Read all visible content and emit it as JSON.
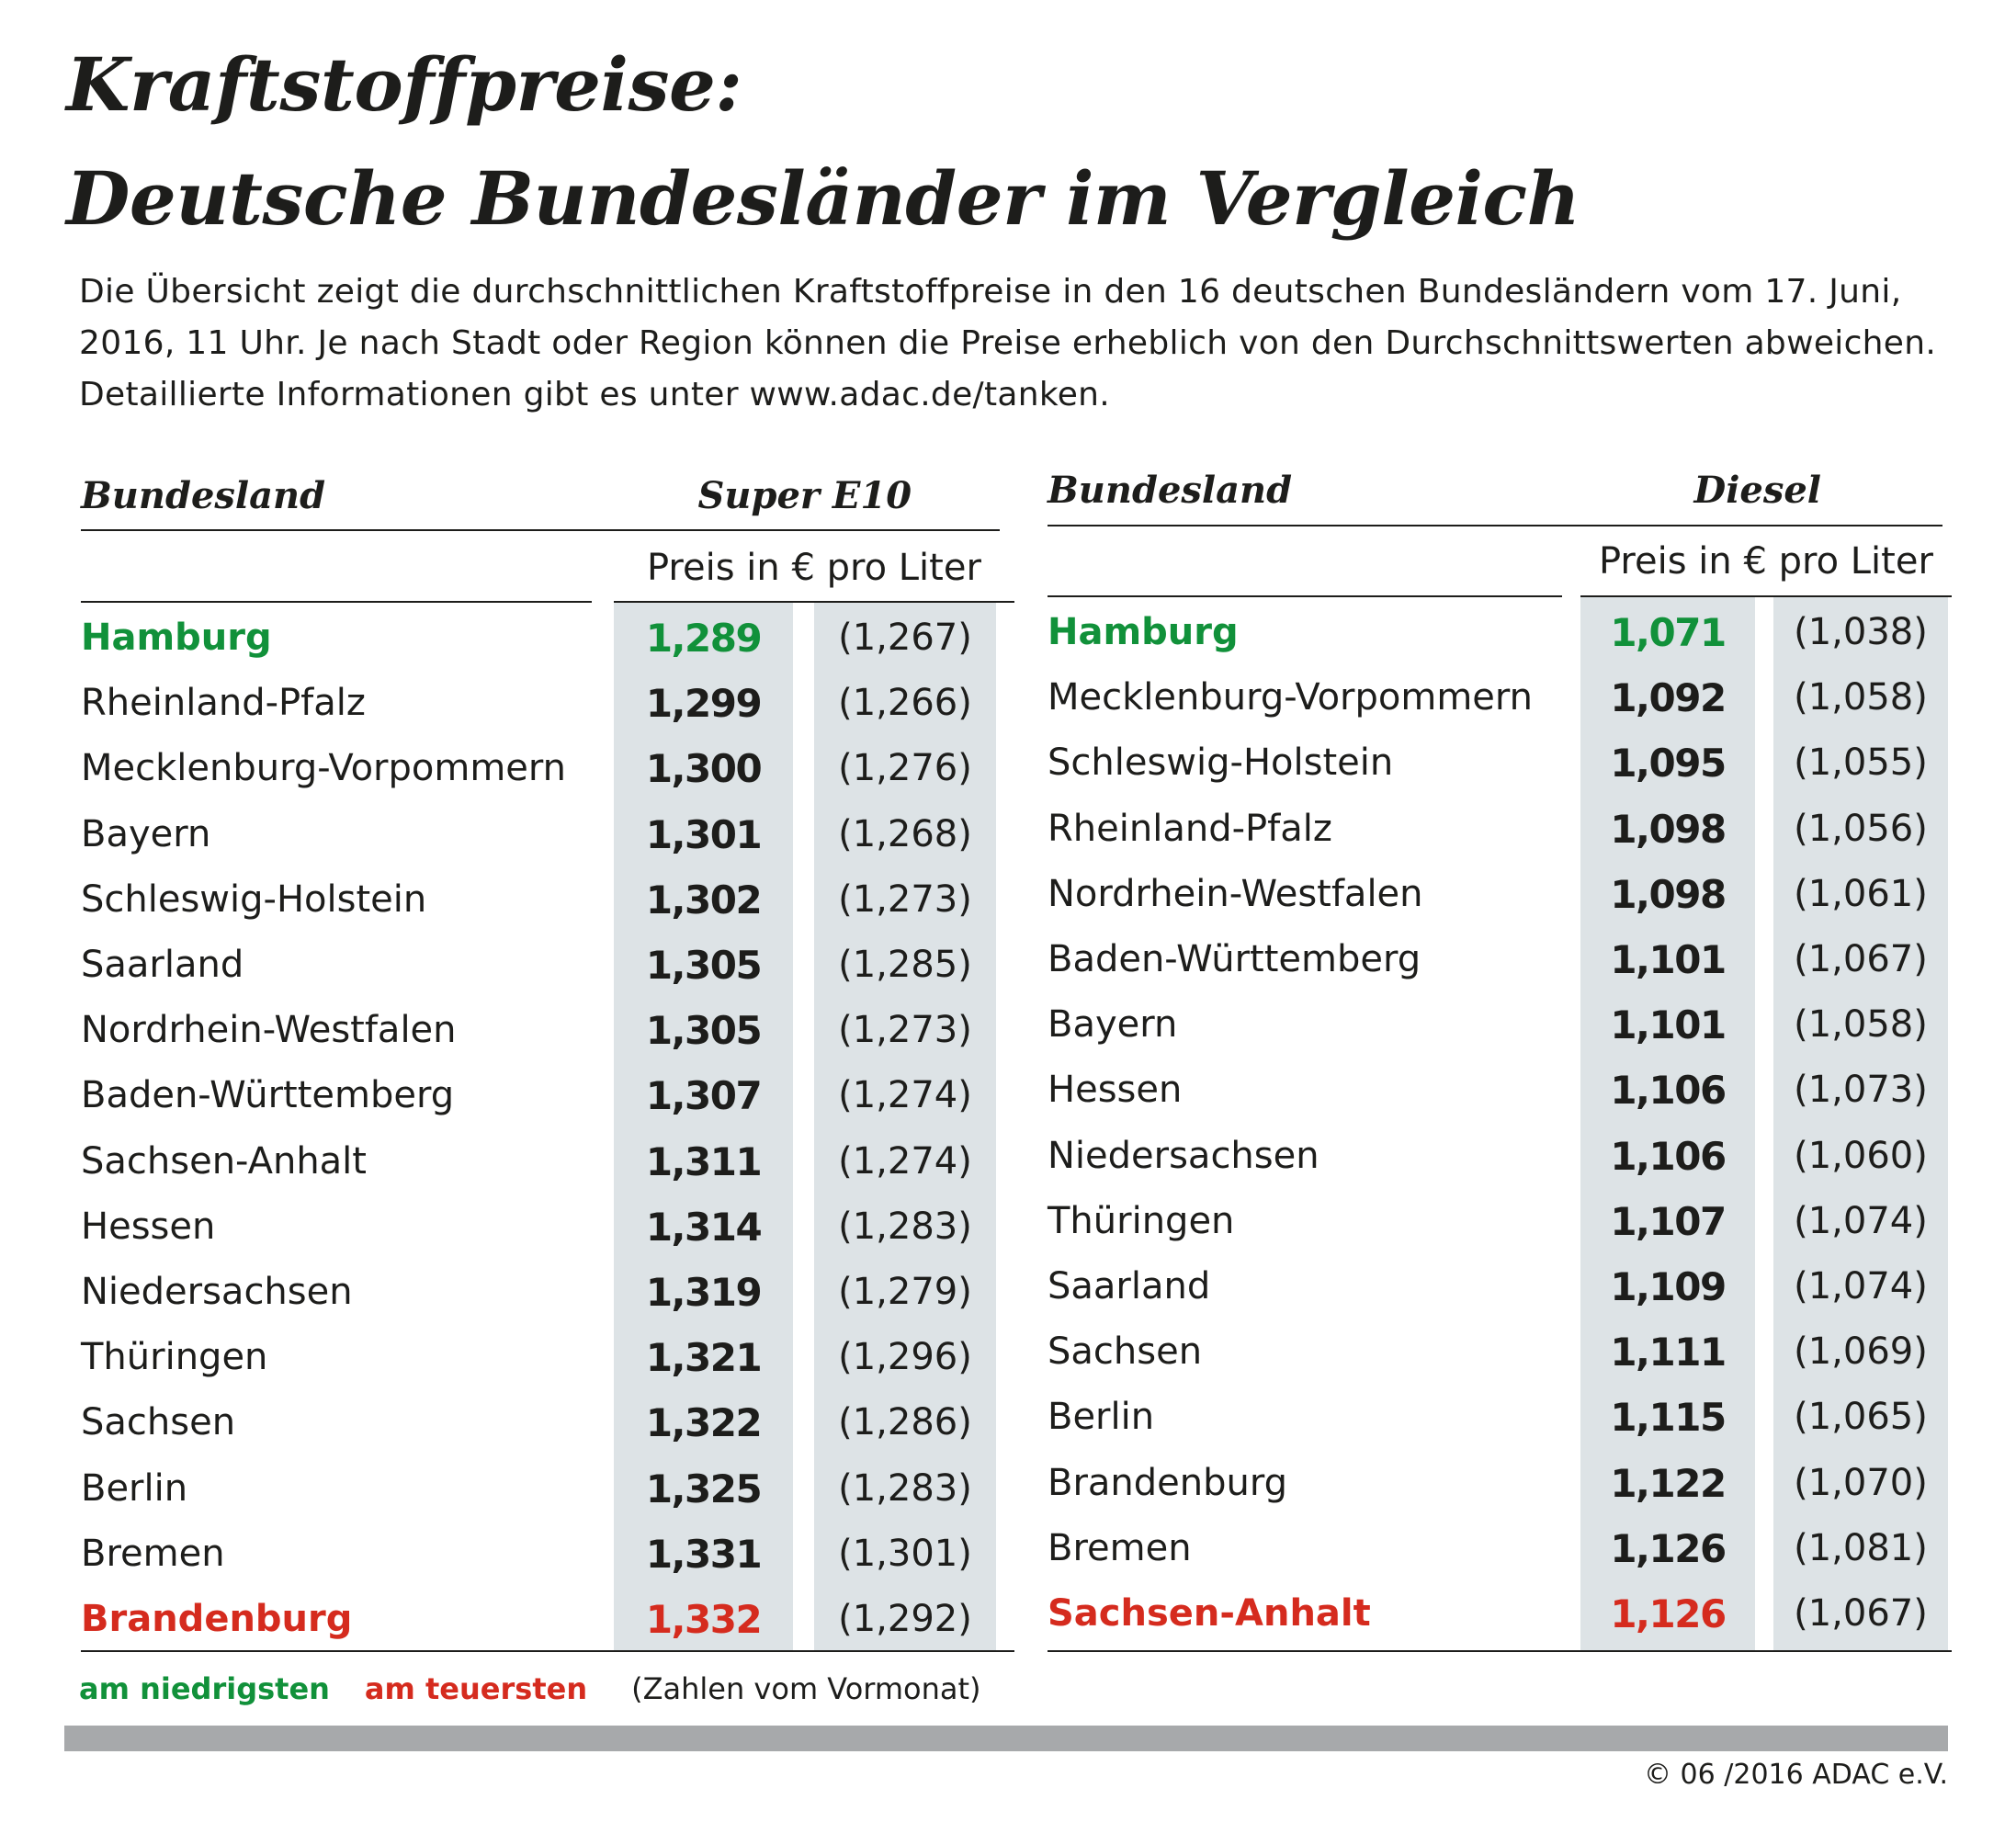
{
  "title": {
    "line1": "Kraftstoffpreise:",
    "line2": "Deutsche Bundesländer im Vergleich"
  },
  "intro": {
    "line1": "Die Übersicht zeigt die durchschnittlichen Kraftstoffpreise in den 16 deutschen Bundesländern vom 17. Juni,",
    "line2": "2016, 11 Uhr. Je nach Stadt oder Region können die Preise erheblich von den Durchschnittswerten abweichen.",
    "line3": "Detaillierte Informationen gibt es unter www.adac.de/tanken."
  },
  "tables": [
    {
      "header_state": "Bundesland",
      "header_fuel": "Super E10",
      "subheader": "Preis in € pro Liter",
      "rows": [
        {
          "state": "Hamburg",
          "price": "1,289",
          "prev": "(1,267)",
          "highlight": "low"
        },
        {
          "state": "Rheinland-Pfalz",
          "price": "1,299",
          "prev": "(1,266)"
        },
        {
          "state": "Mecklenburg-Vorpommern",
          "price": "1,300",
          "prev": "(1,276)"
        },
        {
          "state": "Bayern",
          "price": "1,301",
          "prev": "(1,268)"
        },
        {
          "state": "Schleswig-Holstein",
          "price": "1,302",
          "prev": "(1,273)"
        },
        {
          "state": "Saarland",
          "price": "1,305",
          "prev": "(1,285)"
        },
        {
          "state": "Nordrhein-Westfalen",
          "price": "1,305",
          "prev": "(1,273)"
        },
        {
          "state": "Baden-Württemberg",
          "price": "1,307",
          "prev": "(1,274)"
        },
        {
          "state": "Sachsen-Anhalt",
          "price": "1,311",
          "prev": "(1,274)"
        },
        {
          "state": "Hessen",
          "price": "1,314",
          "prev": "(1,283)"
        },
        {
          "state": "Niedersachsen",
          "price": "1,319",
          "prev": "(1,279)"
        },
        {
          "state": "Thüringen",
          "price": "1,321",
          "prev": "(1,296)"
        },
        {
          "state": "Sachsen",
          "price": "1,322",
          "prev": "(1,286)"
        },
        {
          "state": "Berlin",
          "price": "1,325",
          "prev": "(1,283)"
        },
        {
          "state": "Bremen",
          "price": "1,331",
          "prev": "(1,301)"
        },
        {
          "state": "Brandenburg",
          "price": "1,332",
          "prev": "(1,292)",
          "highlight": "high"
        }
      ]
    },
    {
      "header_state": "Bundesland",
      "header_fuel": "Diesel",
      "subheader": "Preis in € pro Liter",
      "rows": [
        {
          "state": "Hamburg",
          "price": "1,071",
          "prev": "(1,038)",
          "highlight": "low"
        },
        {
          "state": "Mecklenburg-Vorpommern",
          "price": "1,092",
          "prev": "(1,058)"
        },
        {
          "state": "Schleswig-Holstein",
          "price": "1,095",
          "prev": "(1,055)"
        },
        {
          "state": "Rheinland-Pfalz",
          "price": "1,098",
          "prev": "(1,056)"
        },
        {
          "state": "Nordrhein-Westfalen",
          "price": "1,098",
          "prev": "(1,061)"
        },
        {
          "state": "Baden-Württemberg",
          "price": "1,101",
          "prev": "(1,067)"
        },
        {
          "state": "Bayern",
          "price": "1,101",
          "prev": "(1,058)"
        },
        {
          "state": "Hessen",
          "price": "1,106",
          "prev": "(1,073)"
        },
        {
          "state": "Niedersachsen",
          "price": "1,106",
          "prev": "(1,060)"
        },
        {
          "state": "Thüringen",
          "price": "1,107",
          "prev": "(1,074)"
        },
        {
          "state": "Saarland",
          "price": "1,109",
          "prev": "(1,074)"
        },
        {
          "state": "Sachsen",
          "price": "1,111",
          "prev": "(1,069)"
        },
        {
          "state": "Berlin",
          "price": "1,115",
          "prev": "(1,065)"
        },
        {
          "state": "Brandenburg",
          "price": "1,122",
          "prev": "(1,070)"
        },
        {
          "state": "Bremen",
          "price": "1,126",
          "prev": "(1,081)"
        },
        {
          "state": "Sachsen-Anhalt",
          "price": "1,126",
          "prev": "(1,067)",
          "highlight": "high"
        }
      ]
    }
  ],
  "legend": {
    "low_label": "am niedrigsten",
    "high_label": "am teuersten",
    "note": "(Zahlen vom Vormonat)"
  },
  "colors": {
    "low": "#11913a",
    "high": "#d52b1e",
    "shade": "#dde3e6",
    "bar": "#a7a9ab"
  },
  "copyright": "© 06 /2016 ADAC e.V."
}
